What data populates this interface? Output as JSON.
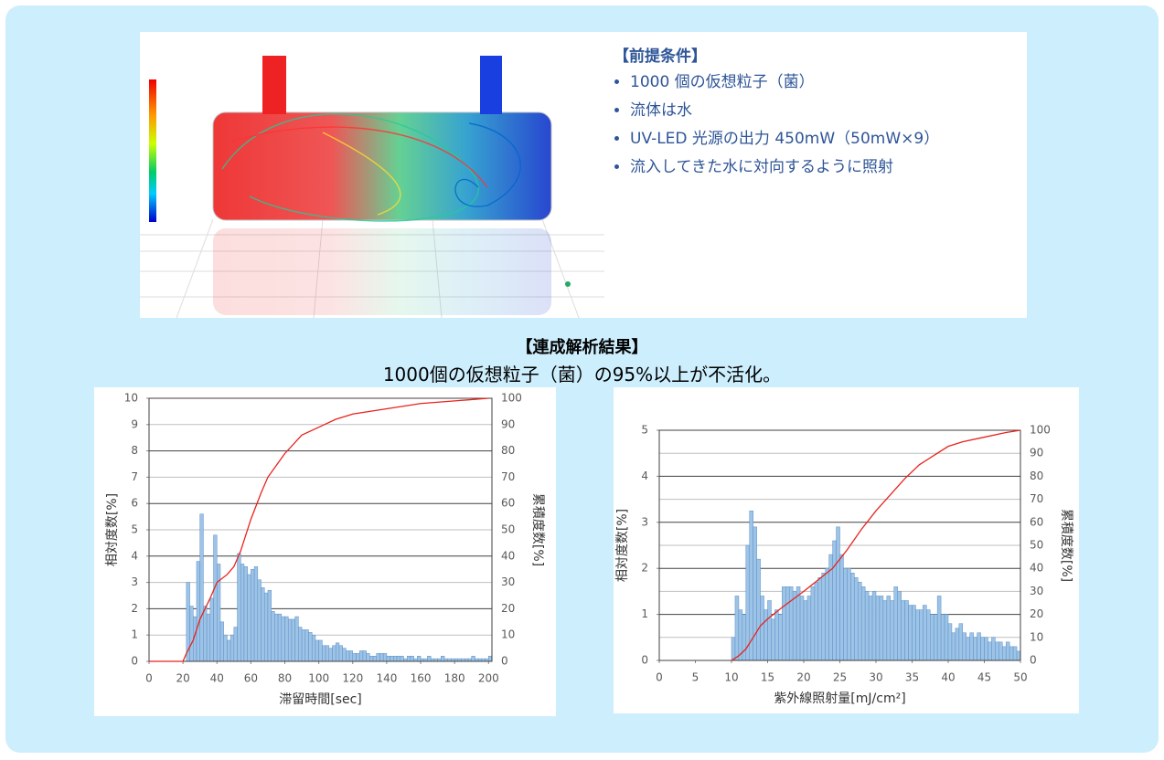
{
  "conditions": {
    "heading": "【前提条件】",
    "items": [
      "1000 個の仮想粒子（菌）",
      "流体は水",
      "UV-LED 光源の出力 450mW（50mW×9）",
      "流入してきた水に対向するように照射"
    ]
  },
  "result": {
    "heading": "【連成解析結果】",
    "summary": "1000個の仮想粒子（菌）の95%以上が不活化。"
  },
  "chart_data": [
    {
      "type": "histogram",
      "xlabel": "滞留時間[sec]",
      "ylabel": "相対度数[%]",
      "y2label": "累積度数[%]",
      "color": "#9dc3e6",
      "grid": true,
      "xlim": [
        0,
        202
      ],
      "xticks": [
        0,
        20,
        40,
        60,
        80,
        100,
        120,
        140,
        160,
        180,
        200
      ],
      "ylim": [
        0,
        10
      ],
      "yticks": [
        0,
        1,
        2,
        3,
        4,
        5,
        6,
        7,
        8,
        9,
        10
      ],
      "y2lim": [
        0,
        100
      ],
      "y2ticks": [
        0,
        10,
        20,
        30,
        40,
        50,
        60,
        70,
        80,
        90,
        100
      ],
      "bins": [
        22,
        24,
        26,
        28,
        30,
        32,
        34,
        36,
        38,
        40,
        42,
        44,
        46,
        48,
        50,
        52,
        54,
        56,
        58,
        60,
        62,
        64,
        66,
        68,
        70,
        72,
        74,
        76,
        78,
        80,
        82,
        84,
        86,
        88,
        90,
        92,
        94,
        96,
        98,
        100,
        102,
        104,
        106,
        108,
        110,
        112,
        114,
        116,
        118,
        120,
        122,
        124,
        126,
        128,
        130,
        132,
        134,
        136,
        138,
        140,
        142,
        144,
        146,
        148,
        150,
        152,
        154,
        156,
        158,
        160,
        162,
        164,
        166,
        168,
        170,
        172,
        174,
        176,
        178,
        180,
        182,
        184,
        186,
        188,
        190,
        192,
        194,
        196,
        198,
        200,
        202
      ],
      "values": [
        3.0,
        2.1,
        1.7,
        3.8,
        5.6,
        2.1,
        1.8,
        2.4,
        4.8,
        3.7,
        1.5,
        1.0,
        0.8,
        1.0,
        1.3,
        4.1,
        3.7,
        3.6,
        3.3,
        3.5,
        3.6,
        3.1,
        2.8,
        2.6,
        2.7,
        1.9,
        1.8,
        1.8,
        1.7,
        1.7,
        1.6,
        1.6,
        1.7,
        1.3,
        1.2,
        1.2,
        1.1,
        1.0,
        0.8,
        0.8,
        0.6,
        0.6,
        0.5,
        0.6,
        0.7,
        0.6,
        0.5,
        0.4,
        0.4,
        0.3,
        0.3,
        0.4,
        0.4,
        0.3,
        0.2,
        0.2,
        0.3,
        0.3,
        0.3,
        0.2,
        0.2,
        0.2,
        0.2,
        0.2,
        0.1,
        0.2,
        0.2,
        0.1,
        0.2,
        0.1,
        0.1,
        0.2,
        0.1,
        0.1,
        0.1,
        0.2,
        0.1,
        0.1,
        0.1,
        0.1,
        0.1,
        0.1,
        0.1,
        0.1,
        0.2,
        0.1,
        0.1,
        0.1,
        0.1,
        0.2
      ],
      "cumulative": {
        "axis": "y2",
        "color": "#e8231d",
        "x": [
          0,
          20,
          22,
          26,
          30,
          36,
          40,
          46,
          50,
          54,
          60,
          66,
          70,
          80,
          90,
          100,
          110,
          120,
          140,
          160,
          180,
          200
        ],
        "values": [
          0,
          0,
          3,
          8,
          16,
          24,
          30,
          33,
          36,
          42,
          54,
          64,
          70,
          79,
          86,
          89,
          92,
          94,
          96,
          98,
          99,
          100
        ]
      }
    },
    {
      "type": "histogram",
      "xlabel": "紫外線照射量[mJ/cm²]",
      "ylabel": "相対度数[%]",
      "y2label": "累積度数[%]",
      "color": "#9dc3e6",
      "grid": true,
      "xlim": [
        0,
        50
      ],
      "xticks": [
        0,
        5,
        10,
        15,
        20,
        25,
        30,
        35,
        40,
        45,
        50
      ],
      "ylim": [
        0,
        5
      ],
      "yticks": [
        0,
        1,
        2,
        3,
        4,
        5
      ],
      "y2lim": [
        0,
        100
      ],
      "y2ticks": [
        0,
        10,
        20,
        30,
        40,
        50,
        60,
        70,
        80,
        90,
        100
      ],
      "bins": [
        10,
        10.5,
        11,
        11.5,
        12,
        12.5,
        13,
        13.5,
        14,
        14.5,
        15,
        15.5,
        16,
        16.5,
        17,
        17.5,
        18,
        18.5,
        19,
        19.5,
        20,
        20.5,
        21,
        21.5,
        22,
        22.5,
        23,
        23.5,
        24,
        24.5,
        25,
        25.5,
        26,
        26.5,
        27,
        27.5,
        28,
        28.5,
        29,
        29.5,
        30,
        30.5,
        31,
        31.5,
        32,
        32.5,
        33,
        33.5,
        34,
        34.5,
        35,
        35.5,
        36,
        36.5,
        37,
        37.5,
        38,
        38.5,
        39,
        39.5,
        40,
        40.5,
        41,
        41.5,
        42,
        42.5,
        43,
        43.5,
        44,
        44.5,
        45,
        45.5,
        46,
        46.5,
        47,
        47.5,
        48,
        48.5,
        49,
        49.5,
        50
      ],
      "values": [
        0.5,
        1.4,
        1.1,
        1.0,
        2.5,
        3.25,
        2.9,
        2.2,
        1.4,
        1.1,
        1.3,
        0.9,
        1.1,
        1.0,
        1.6,
        1.6,
        1.6,
        1.5,
        1.6,
        1.4,
        1.3,
        1.4,
        1.6,
        1.7,
        1.8,
        1.9,
        2.0,
        2.3,
        2.6,
        2.9,
        2.3,
        2.0,
        2.0,
        1.9,
        1.8,
        1.7,
        1.6,
        1.5,
        1.4,
        1.5,
        1.4,
        1.4,
        1.3,
        1.4,
        1.3,
        1.6,
        1.5,
        1.3,
        1.3,
        1.2,
        1.2,
        1.1,
        1.1,
        1.2,
        1.1,
        1.0,
        1.0,
        1.4,
        1.0,
        1.0,
        0.8,
        0.6,
        0.7,
        0.8,
        0.6,
        0.5,
        0.6,
        0.5,
        0.6,
        0.5,
        0.5,
        0.4,
        0.5,
        0.4,
        0.4,
        0.3,
        0.4,
        0.3,
        0.3,
        0.2
      ],
      "cumulative": {
        "axis": "y2",
        "color": "#e8231d",
        "x": [
          10,
          11,
          12,
          13,
          14,
          15,
          17,
          20,
          22,
          24,
          26,
          28,
          30,
          32,
          34,
          36,
          38,
          40,
          42,
          45,
          48,
          50
        ],
        "values": [
          0,
          2,
          5,
          10,
          15,
          18,
          23,
          30,
          35,
          40,
          48,
          57,
          65,
          72,
          79,
          85,
          89,
          93,
          95,
          97,
          99,
          100
        ]
      }
    }
  ]
}
